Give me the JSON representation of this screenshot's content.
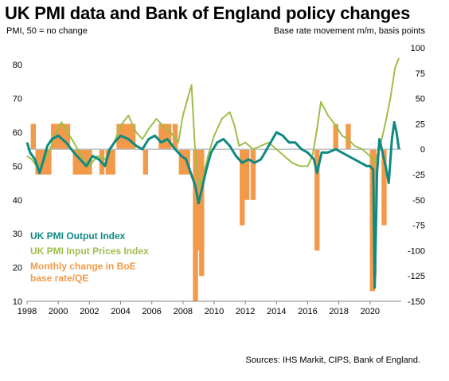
{
  "title": "UK PMI data and Bank of England policy changes",
  "left_axis_title": "PMI, 50 = no change",
  "right_axis_title": "Base rate movement m/m, basis points",
  "sources": "Sources: IHS Markit, CIPS, Bank of England.",
  "colors": {
    "output": "#0f8a82",
    "input": "#9dbe4a",
    "boe": "#f29a4a",
    "zero_line": "#bfbfbf",
    "axis": "#808080"
  },
  "chart_data": {
    "type": "line",
    "title": "UK PMI data and Bank of England policy changes",
    "x_ticks": [
      "1998",
      "2000",
      "2002",
      "2004",
      "2006",
      "2008",
      "2010",
      "2012",
      "2014",
      "2016",
      "2018",
      "2020"
    ],
    "xlim": [
      1998,
      2022
    ],
    "left_axis": {
      "label": "PMI, 50 = no change",
      "ylim": [
        10,
        85
      ],
      "ticks": [
        "10",
        "20",
        "30",
        "40",
        "50",
        "60",
        "70",
        "80"
      ]
    },
    "right_axis": {
      "label": "Base rate movement m/m, basis points",
      "ylim": [
        -150,
        100
      ],
      "ticks": [
        "-150",
        "-125",
        "-100",
        "-75",
        "-50",
        "-25",
        "0",
        "25",
        "50",
        "75",
        "100"
      ]
    },
    "legend": [
      "UK PMI Output Index",
      "UK PMI Input Prices Index",
      "Monthly change in BoE base rate/QE"
    ],
    "series": [
      {
        "name": "UK PMI Output Index",
        "axis": "left",
        "type": "line",
        "x": [
          1998.0,
          1998.2,
          1998.5,
          1998.8,
          1999.0,
          1999.3,
          1999.6,
          2000.0,
          2000.5,
          2001.0,
          2001.4,
          2001.8,
          2002.2,
          2002.6,
          2003.0,
          2003.3,
          2003.6,
          2004.0,
          2004.5,
          2005.0,
          2005.4,
          2005.8,
          2006.2,
          2006.6,
          2007.0,
          2007.5,
          2007.9,
          2008.2,
          2008.5,
          2008.8,
          2009.0,
          2009.2,
          2009.5,
          2009.8,
          2010.2,
          2010.6,
          2011.0,
          2011.4,
          2011.8,
          2012.2,
          2012.6,
          2013.0,
          2013.5,
          2014.0,
          2014.4,
          2014.8,
          2015.2,
          2015.6,
          2016.0,
          2016.4,
          2016.6,
          2016.9,
          2017.3,
          2017.8,
          2018.2,
          2018.6,
          2019.0,
          2019.4,
          2019.8,
          2020.0,
          2020.2,
          2020.3,
          2020.45,
          2020.6,
          2020.8,
          2021.0,
          2021.2,
          2021.4,
          2021.55,
          2021.7,
          2021.85
        ],
        "values": [
          57,
          54,
          52,
          48,
          51,
          56,
          58,
          59,
          57,
          54,
          52,
          50,
          53,
          52,
          50,
          55,
          57,
          59,
          58,
          56,
          55,
          58,
          59,
          57,
          58,
          55,
          53,
          52,
          48,
          44,
          39,
          43,
          49,
          54,
          57,
          58,
          56,
          53,
          51,
          52,
          51,
          52,
          56,
          60,
          59,
          57,
          57,
          55,
          54,
          52,
          48,
          54,
          54,
          55,
          54,
          53,
          52,
          51,
          50,
          50,
          49,
          14,
          48,
          58,
          54,
          50,
          45,
          58,
          63,
          60,
          55
        ]
      },
      {
        "name": "UK PMI Input Prices Index",
        "axis": "left",
        "type": "line",
        "x": [
          1998.0,
          1998.3,
          1998.6,
          1999.0,
          1999.4,
          1999.8,
          2000.2,
          2000.6,
          2001.0,
          2001.5,
          2002.0,
          2002.5,
          2003.0,
          2003.5,
          2004.0,
          2004.5,
          2005.0,
          2005.4,
          2005.8,
          2006.3,
          2006.7,
          2007.2,
          2007.7,
          2008.0,
          2008.3,
          2008.55,
          2008.75,
          2009.0,
          2009.3,
          2009.6,
          2010.0,
          2010.5,
          2011.0,
          2011.3,
          2011.6,
          2012.0,
          2012.5,
          2013.0,
          2013.5,
          2014.0,
          2014.5,
          2015.0,
          2015.5,
          2016.0,
          2016.3,
          2016.6,
          2016.85,
          2017.3,
          2017.8,
          2018.2,
          2018.6,
          2019.0,
          2019.5,
          2020.0,
          2020.3,
          2020.6,
          2021.0,
          2021.3,
          2021.6,
          2021.85
        ],
        "values": [
          53,
          52,
          50,
          51,
          54,
          59,
          63,
          60,
          57,
          53,
          50,
          53,
          52,
          56,
          62,
          65,
          60,
          58,
          61,
          64,
          62,
          60,
          57,
          65,
          70,
          74,
          57,
          44,
          47,
          53,
          59,
          64,
          66,
          62,
          56,
          57,
          55,
          56,
          57,
          55,
          53,
          51,
          50,
          50,
          53,
          61,
          69,
          65,
          62,
          59,
          58,
          56,
          55,
          53,
          51,
          55,
          63,
          70,
          79,
          82
        ]
      },
      {
        "name": "Monthly change in BoE base rate/QE",
        "axis": "right",
        "type": "bar",
        "x": [
          1998.4,
          1998.7,
          1998.9,
          1999.05,
          1999.2,
          1999.4,
          1999.7,
          1999.9,
          2000.1,
          2000.4,
          2000.6,
          2001.1,
          2001.3,
          2001.6,
          2001.8,
          2002.0,
          2002.8,
          2003.2,
          2003.5,
          2003.9,
          2004.2,
          2004.45,
          2004.6,
          2004.8,
          2005.6,
          2006.6,
          2006.9,
          2007.1,
          2007.5,
          2007.9,
          2008.1,
          2008.3,
          2008.8,
          2008.9,
          2009.0,
          2009.2,
          2011.8,
          2012.1,
          2012.5,
          2016.6,
          2017.8,
          2018.6,
          2020.15,
          2020.25,
          2020.9
        ],
        "values": [
          25,
          -25,
          -25,
          -25,
          -25,
          -25,
          25,
          25,
          25,
          25,
          25,
          -25,
          -25,
          -25,
          -25,
          -25,
          -25,
          -25,
          -25,
          25,
          25,
          25,
          25,
          25,
          -25,
          25,
          25,
          25,
          25,
          -25,
          -25,
          -25,
          -150,
          -75,
          -100,
          -125,
          -75,
          -50,
          -50,
          -100,
          25,
          25,
          -140,
          -125,
          -75
        ]
      }
    ]
  }
}
